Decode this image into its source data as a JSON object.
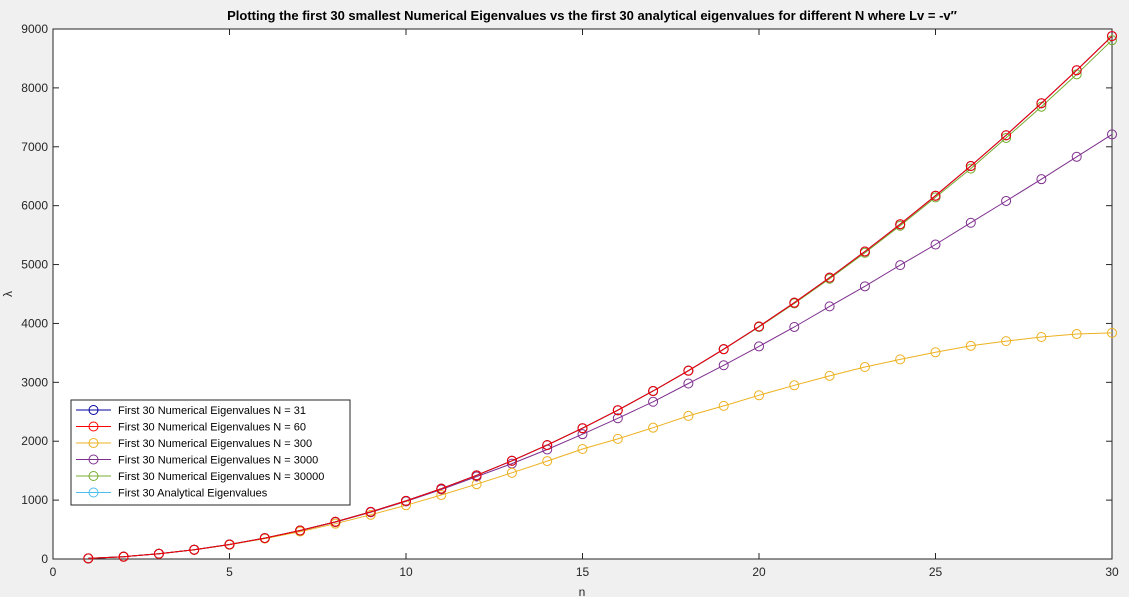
{
  "chart_data": {
    "type": "line",
    "title": "Plotting the first 30 smallest Numerical Eigenvalues vs the first 30 analytical eigenvalues for different N where Lv = -v′′",
    "xlabel": "n",
    "ylabel": "λ",
    "xlim": [
      0,
      30
    ],
    "ylim": [
      0,
      9000
    ],
    "xticks": [
      0,
      5,
      10,
      15,
      20,
      25,
      30
    ],
    "yticks": [
      0,
      1000,
      2000,
      3000,
      4000,
      5000,
      6000,
      7000,
      8000,
      9000
    ],
    "grid": false,
    "legend_position": "lower-left",
    "x": [
      1,
      2,
      3,
      4,
      5,
      6,
      7,
      8,
      9,
      10,
      11,
      12,
      13,
      14,
      15,
      16,
      17,
      18,
      19,
      20,
      21,
      22,
      23,
      24,
      25,
      26,
      27,
      28,
      29,
      30
    ],
    "series": [
      {
        "name": "First 30 Numerical Eigenvalues N = 31",
        "color": "#0000a0",
        "marker": "circle",
        "values": [
          9.87,
          39.5,
          88.8,
          158,
          247,
          355,
          484,
          632,
          800,
          987,
          1194,
          1421,
          1668,
          1934,
          2221,
          2527,
          2852,
          3198,
          3563,
          3948,
          4353,
          4778,
          5222,
          5685,
          6169,
          6673,
          7196,
          7740,
          8300,
          8880
        ]
      },
      {
        "name": "First 30 Numerical Eigenvalues N = 60",
        "color": "#ff0000",
        "marker": "circle",
        "values": [
          9.87,
          39.5,
          88.8,
          158,
          247,
          355,
          484,
          632,
          800,
          987,
          1194,
          1421,
          1668,
          1934,
          2221,
          2527,
          2852,
          3198,
          3563,
          3948,
          4353,
          4778,
          5222,
          5685,
          6169,
          6673,
          7196,
          7740,
          8300,
          8880
        ]
      },
      {
        "name": "First 30 Numerical Eigenvalues N = 300",
        "color": "#edb120",
        "marker": "circle",
        "values": [
          9.9,
          39.4,
          88.3,
          156,
          243,
          346,
          466,
          600,
          750,
          912,
          1086,
          1270,
          1463,
          1663,
          1868,
          2040,
          2230,
          2430,
          2600,
          2780,
          2950,
          3110,
          3260,
          3390,
          3510,
          3620,
          3700,
          3770,
          3820,
          3840
        ]
      },
      {
        "name": "First 30 Numerical Eigenvalues N = 3000",
        "color": "#7e2f8e",
        "marker": "circle",
        "values": [
          9.87,
          39.5,
          88.7,
          158,
          246,
          354,
          481,
          627,
          793,
          978,
          1180,
          1400,
          1620,
          1860,
          2120,
          2390,
          2670,
          2980,
          3290,
          3610,
          3940,
          4290,
          4630,
          4990,
          5340,
          5710,
          6080,
          6450,
          6830,
          7210
        ]
      },
      {
        "name": "First 30 Numerical Eigenvalues N = 30000",
        "color": "#77ac30",
        "marker": "circle",
        "values": [
          9.87,
          39.5,
          88.8,
          158,
          247,
          355,
          484,
          632,
          800,
          987,
          1194,
          1421,
          1668,
          1934,
          2221,
          2527,
          2852,
          3198,
          3563,
          3940,
          4340,
          4760,
          5200,
          5660,
          6140,
          6630,
          7150,
          7680,
          8230,
          8810
        ]
      },
      {
        "name": "First 30 Analytical Eigenvalues",
        "color": "#4dbeee",
        "marker": "none",
        "values": [
          9.87,
          39.5,
          88.8,
          158,
          247,
          355,
          484,
          632,
          800,
          987,
          1194,
          1421,
          1668,
          1934,
          2221,
          2527,
          2852,
          3198,
          3563,
          3948,
          4353,
          4778,
          5222,
          5685,
          6169,
          6673,
          7196,
          7740,
          8300,
          8880
        ]
      }
    ]
  }
}
